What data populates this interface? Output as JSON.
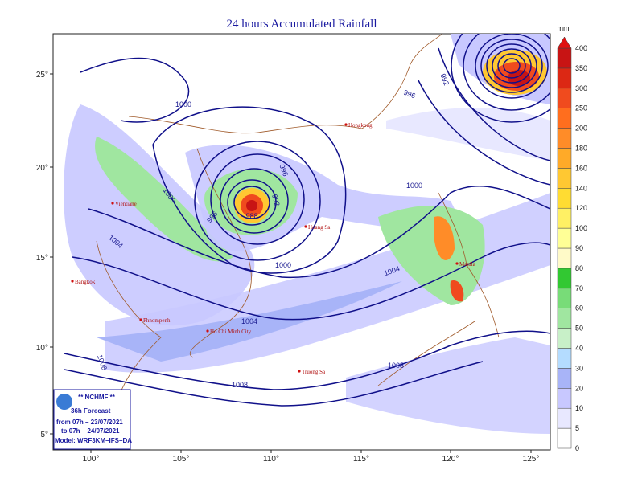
{
  "title": "24 hours Accumulated Rainfall",
  "colorbar": {
    "unit": "mm",
    "levels": [
      0,
      5,
      10,
      20,
      30,
      40,
      50,
      60,
      70,
      80,
      90,
      100,
      120,
      140,
      160,
      180,
      200,
      250,
      300,
      350,
      400
    ],
    "colors": [
      "#ffffff",
      "#e8e8ff",
      "#c8c8ff",
      "#a8b4f8",
      "#b4dcff",
      "#c8f0c8",
      "#a0e6a0",
      "#78dc78",
      "#32c832",
      "#fffac8",
      "#ffff96",
      "#fff064",
      "#ffdc32",
      "#ffc832",
      "#ffaa28",
      "#ff8c28",
      "#ff6e1e",
      "#f04b1e",
      "#dc2814",
      "#c81414"
    ],
    "top_color": "#e01010"
  },
  "axes": {
    "longitudes": [
      "100°",
      "105°",
      "110°",
      "115°",
      "120°",
      "125°"
    ],
    "latitudes": [
      "25°",
      "20°",
      "15°",
      "10°",
      "5°"
    ]
  },
  "places": [
    "Hongkong",
    "Hoang Sa",
    "Vientiane",
    "Bangkok",
    "Phnompenh",
    "Ho Chi Minh City",
    "Truong Sa",
    "Manila"
  ],
  "isobars": [
    "1000",
    "996",
    "992",
    "988",
    "996",
    "1000",
    "1004",
    "1000",
    "1004",
    "1004",
    "1008",
    "1008",
    "1008",
    "1000",
    "996",
    "992"
  ],
  "info": {
    "agency": "** NCHMF **",
    "forecast": "36h Forecast",
    "from": "from 07h – 23/07/2021",
    "to": "to 07h – 24/07/2021",
    "model": "Model: WRF3KM–IFS–DA"
  }
}
